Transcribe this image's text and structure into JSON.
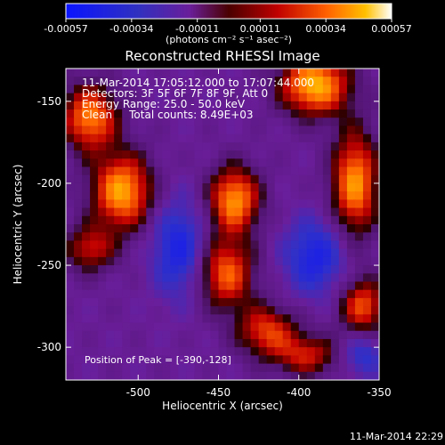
{
  "chart_data": {
    "type": "heatmap",
    "title": "Reconstructed RHESSI Image",
    "xlabel": "Heliocentric X (arcsec)",
    "ylabel": "Heliocentric Y (arcsec)",
    "xlim": [
      -545,
      -350
    ],
    "ylim": [
      -320,
      -130
    ],
    "x_ticks": [
      "-500",
      "-450",
      "-400",
      "-350"
    ],
    "x_tick_values": [
      -500,
      -450,
      -400,
      -350
    ],
    "y_ticks": [
      "-150",
      "-200",
      "-250",
      "-300"
    ],
    "y_tick_values": [
      -150,
      -200,
      -250,
      -300
    ],
    "colorbar": {
      "ticks": [
        "-0.00057",
        "-0.00034",
        "-0.00011",
        "0.00011",
        "0.00034",
        "0.00057"
      ],
      "tick_values": [
        -0.00057,
        -0.00034,
        -0.00011,
        0.00011,
        0.00034,
        0.00057
      ],
      "min": -0.00057,
      "max": 0.00057,
      "unit_label": "(photons cm⁻² s⁻¹ asec⁻²)"
    },
    "annotations": [
      "11-Mar-2014 17:05:12.000 to 17:07:44.000",
      "Detectors: 3F 5F 6F 7F 8F 9F, Att 0",
      "Energy Range: 25.0 - 50.0 keV",
      "Clean     Total counts: 8.49E+03"
    ],
    "peak_label": "Position of Peak = [-390,-128]",
    "peak_position": [
      -390,
      -128
    ],
    "sources": [
      {
        "x": -390,
        "y": -140,
        "value": 1.0,
        "sx": 15,
        "sy": 13
      },
      {
        "x": -530,
        "y": -160,
        "value": 0.85,
        "sx": 12,
        "sy": 14
      },
      {
        "x": -510,
        "y": -205,
        "value": 0.95,
        "sx": 13,
        "sy": 16
      },
      {
        "x": -530,
        "y": -240,
        "value": 0.55,
        "sx": 11,
        "sy": 10
      },
      {
        "x": -440,
        "y": -210,
        "value": 0.9,
        "sx": 11,
        "sy": 14
      },
      {
        "x": -445,
        "y": -255,
        "value": 0.75,
        "sx": 12,
        "sy": 15
      },
      {
        "x": -420,
        "y": -290,
        "value": 0.65,
        "sx": 13,
        "sy": 11
      },
      {
        "x": -365,
        "y": -200,
        "value": 0.9,
        "sx": 10,
        "sy": 22
      },
      {
        "x": -360,
        "y": -275,
        "value": 0.7,
        "sx": 10,
        "sy": 12
      },
      {
        "x": -395,
        "y": -305,
        "value": 0.55,
        "sx": 14,
        "sy": 9
      },
      {
        "x": -475,
        "y": -240,
        "value": -0.55,
        "sx": 11,
        "sy": 20
      },
      {
        "x": -390,
        "y": -245,
        "value": -0.55,
        "sx": 13,
        "sy": 16
      },
      {
        "x": -360,
        "y": -305,
        "value": -0.4,
        "sx": 9,
        "sy": 9
      }
    ]
  },
  "footer_timestamp": "11-Mar-2014 22:29"
}
